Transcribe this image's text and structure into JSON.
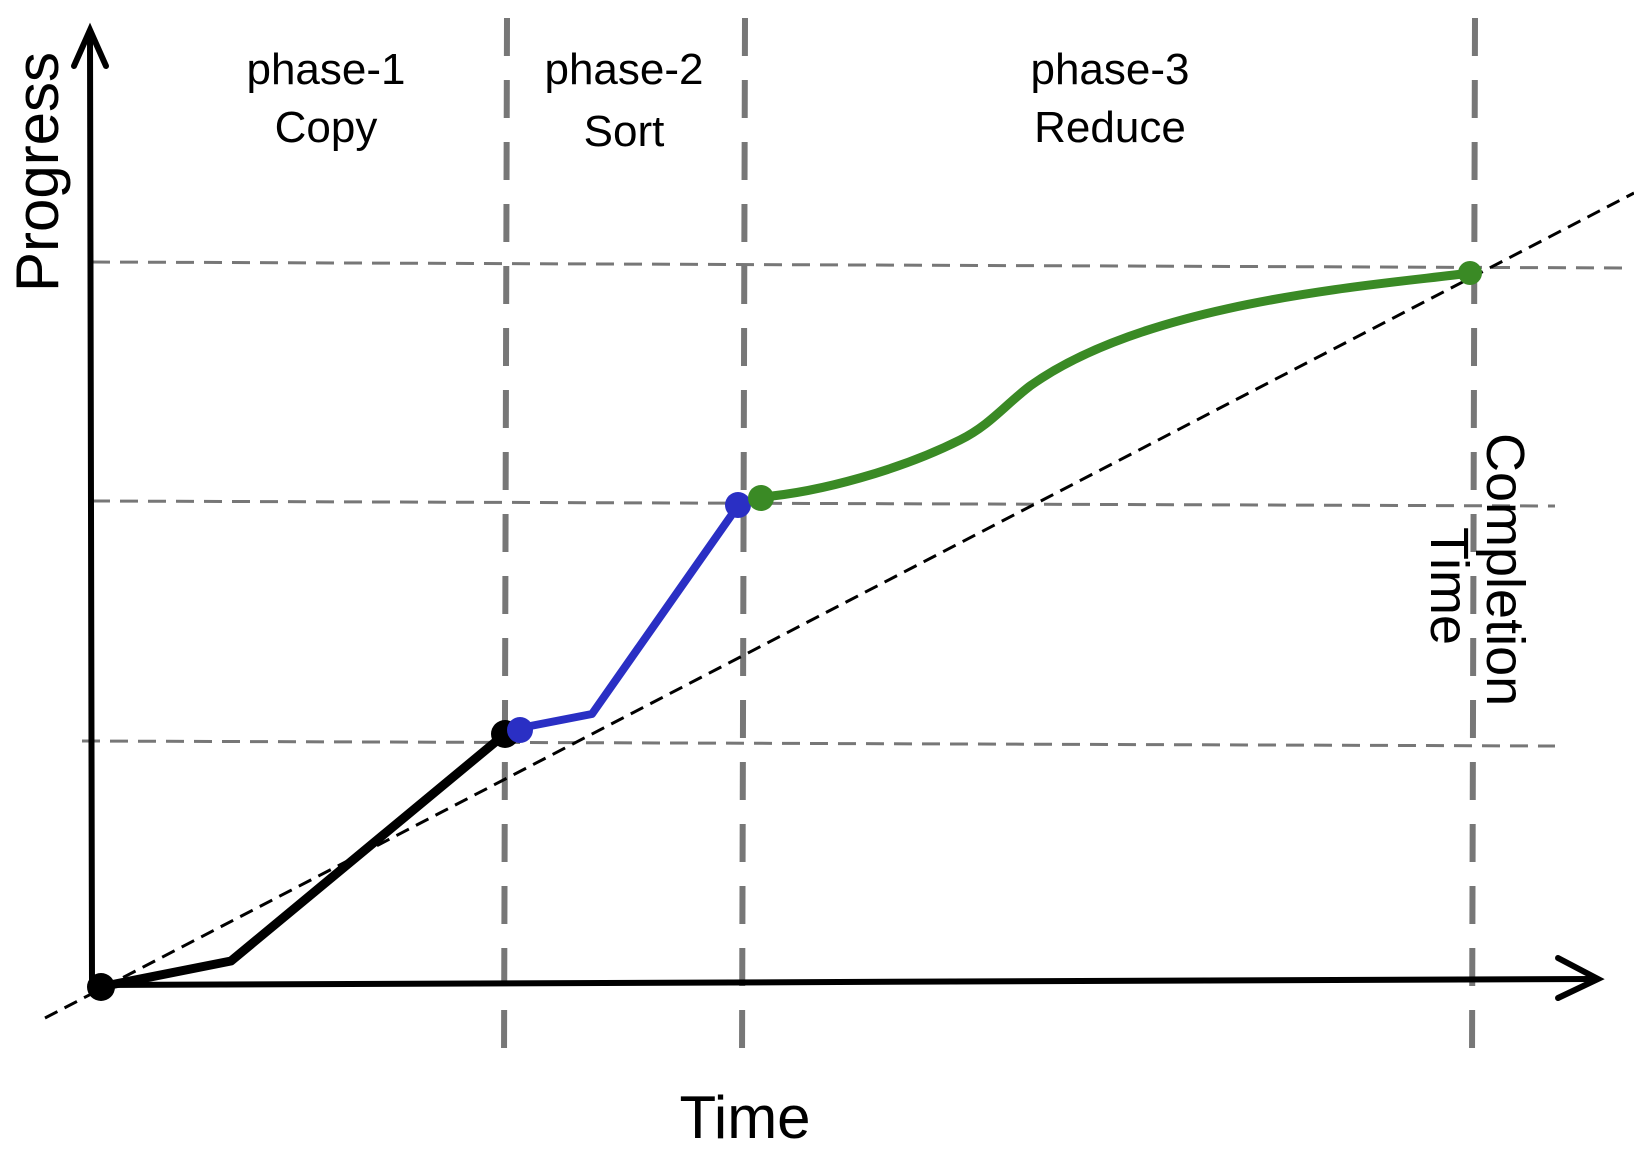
{
  "axes": {
    "x_label": "Time",
    "y_label": "Progress"
  },
  "phases": [
    {
      "line1": "phase-1",
      "line2": "Copy"
    },
    {
      "line1": "phase-2",
      "line2": "Sort"
    },
    {
      "line1": "phase-3",
      "line2": "Reduce"
    }
  ],
  "annotations": {
    "completion_line1": "Completion",
    "completion_line2": "Time"
  },
  "colors": {
    "axis": "#000000",
    "copy_segment": "#000000",
    "sort_segment": "#2a2fc4",
    "reduce_segment": "#3a8a25",
    "guide_lines": "#777777",
    "ideal_line": "#000000"
  }
}
